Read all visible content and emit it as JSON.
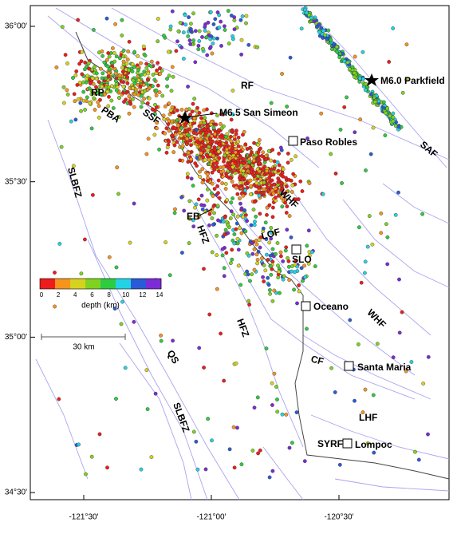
{
  "map": {
    "lat_labels": [
      "36°00'",
      "35°30'",
      "35°00'",
      "34°30'"
    ],
    "lon_labels": [
      "-121°30'",
      "-121°00'",
      "-120°30'"
    ],
    "events": [
      {
        "label": "M6.5 San Simeon"
      },
      {
        "label": "M6.0 Parkfield"
      }
    ],
    "places": [
      {
        "label": "Paso Robles"
      },
      {
        "label": "SLO"
      },
      {
        "label": "Oceano"
      },
      {
        "label": "Santa Maria"
      },
      {
        "label": "Lompoc"
      }
    ],
    "faults": [
      "RF",
      "SAF",
      "WHF",
      "SLBFZ",
      "HFZ",
      "LOF",
      "HFZ",
      "WHF",
      "CF",
      "QS",
      "SLBFZ",
      "LHF",
      "SYRF",
      "RP",
      "PBA",
      "SSF",
      "EB"
    ],
    "colorbar": {
      "title": "depth (km)",
      "ticks": [
        0,
        2,
        4,
        6,
        8,
        10,
        12,
        14
      ],
      "colors": [
        "#ee1c1c",
        "#f7941d",
        "#d7d21e",
        "#7ed321",
        "#2ecc40",
        "#22d3e6",
        "#2a5bd7",
        "#7b2cd6"
      ]
    },
    "scale_bar": "30 km"
  }
}
